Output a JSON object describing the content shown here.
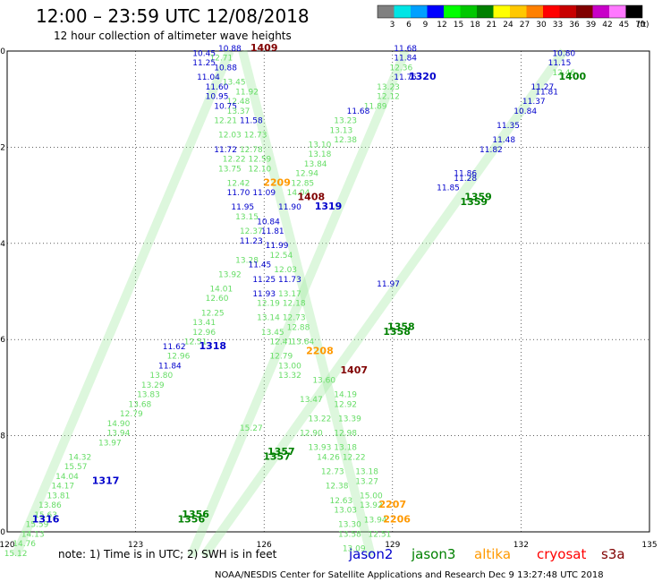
{
  "title": "12:00 – 23:59 UTC 12/08/2018",
  "subtitle": "12 hour collection of altimeter wave heights",
  "color_scale": {
    "unit": "(ft)",
    "labels": [
      "3",
      "6",
      "9",
      "12",
      "15",
      "18",
      "21",
      "24",
      "27",
      "30",
      "33",
      "36",
      "39",
      "42",
      "45",
      "70"
    ],
    "colors": [
      "#808080",
      "#00e5e5",
      "#00a0ff",
      "#0000ff",
      "#00ff00",
      "#00c800",
      "#008000",
      "#ffff00",
      "#ffc800",
      "#ff8000",
      "#ff0000",
      "#c80000",
      "#800000",
      "#c800c8",
      "#ff78ff",
      "#000000"
    ]
  },
  "note": "note: 1) Time is in UTC; 2) SWH is in feet",
  "credit": "NOAA/NESDIS Center for Satellite Applications and Research   Dec  9 13:27:48 UTC 2018",
  "satellites": [
    {
      "name": "jason2",
      "color": "#0000cc"
    },
    {
      "name": "jason3",
      "color": "#008000"
    },
    {
      "name": "altika",
      "color": "#ff9900"
    },
    {
      "name": "cryosat",
      "color": "#ff0000"
    },
    {
      "name": "s3a",
      "color": "#800000"
    }
  ],
  "chart_data": {
    "type": "scatter",
    "x_axis": {
      "min": 120,
      "max": 135,
      "ticks": [
        "120",
        "123",
        "126",
        "129",
        "132",
        "135"
      ]
    },
    "y_axis": {
      "min": -50,
      "max": -40,
      "ticks": [
        "-40",
        "-42",
        "-44",
        "-46",
        "-48",
        "-50"
      ]
    },
    "grid": true,
    "time_labels": [
      {
        "text": "1409",
        "lon": 126.0,
        "lat": -40.0,
        "sat": "s3a"
      },
      {
        "text": "1320",
        "lon": 129.7,
        "lat": -40.6,
        "sat": "jason2"
      },
      {
        "text": "1400",
        "lon": 133.2,
        "lat": -40.6,
        "sat": "jason3"
      },
      {
        "text": "2209",
        "lon": 126.3,
        "lat": -42.8,
        "sat": "altika"
      },
      {
        "text": "1408",
        "lon": 127.1,
        "lat": -43.1,
        "sat": "s3a"
      },
      {
        "text": "1319",
        "lon": 127.5,
        "lat": -43.3,
        "sat": "jason2"
      },
      {
        "text": "1359",
        "lon": 131.0,
        "lat": -43.1,
        "sat": "jason3"
      },
      {
        "text": "1359",
        "lon": 130.9,
        "lat": -43.2,
        "sat": "jason3"
      },
      {
        "text": "1358",
        "lon": 129.2,
        "lat": -45.8,
        "sat": "jason3"
      },
      {
        "text": "1358",
        "lon": 129.1,
        "lat": -45.9,
        "sat": "jason3"
      },
      {
        "text": "1318",
        "lon": 124.8,
        "lat": -46.2,
        "sat": "jason2"
      },
      {
        "text": "2208",
        "lon": 127.3,
        "lat": -46.3,
        "sat": "altika"
      },
      {
        "text": "1407",
        "lon": 128.1,
        "lat": -46.7,
        "sat": "s3a"
      },
      {
        "text": "1357",
        "lon": 126.4,
        "lat": -48.4,
        "sat": "jason3"
      },
      {
        "text": "1357",
        "lon": 126.3,
        "lat": -48.5,
        "sat": "jason3"
      },
      {
        "text": "1317",
        "lon": 122.3,
        "lat": -49.0,
        "sat": "jason2"
      },
      {
        "text": "2207",
        "lon": 129.0,
        "lat": -49.5,
        "sat": "altika"
      },
      {
        "text": "2206",
        "lon": 129.1,
        "lat": -49.8,
        "sat": "altika"
      },
      {
        "text": "1316",
        "lon": 120.9,
        "lat": -49.8,
        "sat": "jason2"
      },
      {
        "text": "1356",
        "lon": 124.4,
        "lat": -49.7,
        "sat": "jason3"
      },
      {
        "text": "1356",
        "lon": 124.3,
        "lat": -49.8,
        "sat": "jason3"
      }
    ],
    "swh_labels": [
      {
        "v": "10.88",
        "lon": 125.2,
        "lat": -40.0,
        "c": "#0000cc"
      },
      {
        "v": "10.45",
        "lon": 124.6,
        "lat": -40.1,
        "c": "#0000cc"
      },
      {
        "v": "12.71",
        "lon": 125.0,
        "lat": -40.2,
        "c": "#66dd66"
      },
      {
        "v": "10.88",
        "lon": 125.1,
        "lat": -40.4,
        "c": "#0000cc"
      },
      {
        "v": "11.25",
        "lon": 124.6,
        "lat": -40.3,
        "c": "#0000cc"
      },
      {
        "v": "11.04",
        "lon": 124.7,
        "lat": -40.6,
        "c": "#0000cc"
      },
      {
        "v": "13.45",
        "lon": 125.3,
        "lat": -40.7,
        "c": "#66dd66"
      },
      {
        "v": "11.60",
        "lon": 124.9,
        "lat": -40.8,
        "c": "#0000cc"
      },
      {
        "v": "11.92",
        "lon": 125.6,
        "lat": -40.9,
        "c": "#66dd66"
      },
      {
        "v": "10.95",
        "lon": 124.9,
        "lat": -41.0,
        "c": "#0000cc"
      },
      {
        "v": "12.48",
        "lon": 125.4,
        "lat": -41.1,
        "c": "#66dd66"
      },
      {
        "v": "10.75",
        "lon": 125.1,
        "lat": -41.2,
        "c": "#0000cc"
      },
      {
        "v": "13.37",
        "lon": 125.4,
        "lat": -41.3,
        "c": "#66dd66"
      },
      {
        "v": "12.21",
        "lon": 125.1,
        "lat": -41.5,
        "c": "#66dd66"
      },
      {
        "v": "11.58",
        "lon": 125.7,
        "lat": -41.5,
        "c": "#0000cc"
      },
      {
        "v": "12.03",
        "lon": 125.2,
        "lat": -41.8,
        "c": "#66dd66"
      },
      {
        "v": "12.73",
        "lon": 125.8,
        "lat": -41.8,
        "c": "#66dd66"
      },
      {
        "v": "11.72",
        "lon": 125.1,
        "lat": -42.1,
        "c": "#0000cc"
      },
      {
        "v": "12.78",
        "lon": 125.7,
        "lat": -42.1,
        "c": "#66dd66"
      },
      {
        "v": "12.22",
        "lon": 125.3,
        "lat": -42.3,
        "c": "#66dd66"
      },
      {
        "v": "12.59",
        "lon": 125.9,
        "lat": -42.3,
        "c": "#66dd66"
      },
      {
        "v": "13.75",
        "lon": 125.2,
        "lat": -42.5,
        "c": "#66dd66"
      },
      {
        "v": "12.10",
        "lon": 125.9,
        "lat": -42.5,
        "c": "#66dd66"
      },
      {
        "v": "12.42",
        "lon": 125.4,
        "lat": -42.8,
        "c": "#66dd66"
      },
      {
        "v": "11.70",
        "lon": 125.4,
        "lat": -43.0,
        "c": "#0000cc"
      },
      {
        "v": "11.09",
        "lon": 126.0,
        "lat": -43.0,
        "c": "#0000cc"
      },
      {
        "v": "11.95",
        "lon": 125.5,
        "lat": -43.3,
        "c": "#0000cc"
      },
      {
        "v": "11.90",
        "lon": 126.6,
        "lat": -43.3,
        "c": "#0000cc"
      },
      {
        "v": "13.15",
        "lon": 125.6,
        "lat": -43.5,
        "c": "#66dd66"
      },
      {
        "v": "10.84",
        "lon": 126.1,
        "lat": -43.6,
        "c": "#0000cc"
      },
      {
        "v": "12.37",
        "lon": 125.7,
        "lat": -43.8,
        "c": "#66dd66"
      },
      {
        "v": "11.81",
        "lon": 126.2,
        "lat": -43.8,
        "c": "#0000cc"
      },
      {
        "v": "11.23",
        "lon": 125.7,
        "lat": -44.0,
        "c": "#0000cc"
      },
      {
        "v": "11.99",
        "lon": 126.3,
        "lat": -44.1,
        "c": "#0000cc"
      },
      {
        "v": "12.54",
        "lon": 126.4,
        "lat": -44.3,
        "c": "#66dd66"
      },
      {
        "v": "13.28",
        "lon": 125.6,
        "lat": -44.4,
        "c": "#66dd66"
      },
      {
        "v": "11.45",
        "lon": 125.9,
        "lat": -44.5,
        "c": "#0000cc"
      },
      {
        "v": "12.03",
        "lon": 126.5,
        "lat": -44.6,
        "c": "#66dd66"
      },
      {
        "v": "13.92",
        "lon": 125.2,
        "lat": -44.7,
        "c": "#66dd66"
      },
      {
        "v": "11.25",
        "lon": 126.0,
        "lat": -44.8,
        "c": "#0000cc"
      },
      {
        "v": "11.73",
        "lon": 126.6,
        "lat": -44.8,
        "c": "#0000cc"
      },
      {
        "v": "14.01",
        "lon": 125.0,
        "lat": -45.0,
        "c": "#66dd66"
      },
      {
        "v": "11.93",
        "lon": 126.0,
        "lat": -45.1,
        "c": "#0000cc"
      },
      {
        "v": "13.17",
        "lon": 126.6,
        "lat": -45.1,
        "c": "#66dd66"
      },
      {
        "v": "12.60",
        "lon": 124.9,
        "lat": -45.2,
        "c": "#66dd66"
      },
      {
        "v": "12.19",
        "lon": 126.1,
        "lat": -45.3,
        "c": "#66dd66"
      },
      {
        "v": "12.18",
        "lon": 126.7,
        "lat": -45.3,
        "c": "#66dd66"
      },
      {
        "v": "12.25",
        "lon": 124.8,
        "lat": -45.5,
        "c": "#66dd66"
      },
      {
        "v": "13.14",
        "lon": 126.1,
        "lat": -45.6,
        "c": "#66dd66"
      },
      {
        "v": "12.73",
        "lon": 126.7,
        "lat": -45.6,
        "c": "#66dd66"
      },
      {
        "v": "13.41",
        "lon": 124.6,
        "lat": -45.7,
        "c": "#66dd66"
      },
      {
        "v": "13.45",
        "lon": 126.2,
        "lat": -45.9,
        "c": "#66dd66"
      },
      {
        "v": "12.88",
        "lon": 126.8,
        "lat": -45.8,
        "c": "#66dd66"
      },
      {
        "v": "12.96",
        "lon": 124.6,
        "lat": -45.9,
        "c": "#66dd66"
      },
      {
        "v": "12.41",
        "lon": 126.4,
        "lat": -46.1,
        "c": "#66dd66"
      },
      {
        "v": "13.64",
        "lon": 126.9,
        "lat": -46.1,
        "c": "#66dd66"
      },
      {
        "v": "12.51",
        "lon": 124.4,
        "lat": -46.1,
        "c": "#66dd66"
      },
      {
        "v": "11.62",
        "lon": 123.9,
        "lat": -46.2,
        "c": "#0000cc"
      },
      {
        "v": "12.79",
        "lon": 126.4,
        "lat": -46.4,
        "c": "#66dd66"
      },
      {
        "v": "12.96",
        "lon": 124.0,
        "lat": -46.4,
        "c": "#66dd66"
      },
      {
        "v": "11.84",
        "lon": 123.8,
        "lat": -46.6,
        "c": "#0000cc"
      },
      {
        "v": "13.00",
        "lon": 126.6,
        "lat": -46.6,
        "c": "#66dd66"
      },
      {
        "v": "13.80",
        "lon": 123.6,
        "lat": -46.8,
        "c": "#66dd66"
      },
      {
        "v": "13.32",
        "lon": 126.6,
        "lat": -46.8,
        "c": "#66dd66"
      },
      {
        "v": "13.60",
        "lon": 127.4,
        "lat": -46.9,
        "c": "#66dd66"
      },
      {
        "v": "13.29",
        "lon": 123.4,
        "lat": -47.0,
        "c": "#66dd66"
      },
      {
        "v": "14.19",
        "lon": 127.9,
        "lat": -47.2,
        "c": "#66dd66"
      },
      {
        "v": "13.83",
        "lon": 123.3,
        "lat": -47.2,
        "c": "#66dd66"
      },
      {
        "v": "13.47",
        "lon": 127.1,
        "lat": -47.3,
        "c": "#66dd66"
      },
      {
        "v": "12.92",
        "lon": 127.9,
        "lat": -47.4,
        "c": "#66dd66"
      },
      {
        "v": "13.68",
        "lon": 123.1,
        "lat": -47.4,
        "c": "#66dd66"
      },
      {
        "v": "12.79",
        "lon": 122.9,
        "lat": -47.6,
        "c": "#66dd66"
      },
      {
        "v": "13.39",
        "lon": 128.0,
        "lat": -47.7,
        "c": "#66dd66"
      },
      {
        "v": "13.22",
        "lon": 127.3,
        "lat": -47.7,
        "c": "#66dd66"
      },
      {
        "v": "14.90",
        "lon": 122.6,
        "lat": -47.8,
        "c": "#66dd66"
      },
      {
        "v": "15.27",
        "lon": 125.7,
        "lat": -47.9,
        "c": "#66dd66"
      },
      {
        "v": "13.94",
        "lon": 122.6,
        "lat": -48.0,
        "c": "#66dd66"
      },
      {
        "v": "12.90",
        "lon": 127.1,
        "lat": -48.0,
        "c": "#66dd66"
      },
      {
        "v": "12.98",
        "lon": 127.9,
        "lat": -48.0,
        "c": "#66dd66"
      },
      {
        "v": "13.97",
        "lon": 122.4,
        "lat": -48.2,
        "c": "#66dd66"
      },
      {
        "v": "13.93",
        "lon": 127.3,
        "lat": -48.3,
        "c": "#66dd66"
      },
      {
        "v": "13.18",
        "lon": 127.9,
        "lat": -48.3,
        "c": "#66dd66"
      },
      {
        "v": "14.26",
        "lon": 127.5,
        "lat": -48.5,
        "c": "#66dd66"
      },
      {
        "v": "12.22",
        "lon": 128.1,
        "lat": -48.5,
        "c": "#66dd66"
      },
      {
        "v": "14.32",
        "lon": 121.7,
        "lat": -48.5,
        "c": "#66dd66"
      },
      {
        "v": "15.57",
        "lon": 121.6,
        "lat": -48.7,
        "c": "#66dd66"
      },
      {
        "v": "12.73",
        "lon": 127.6,
        "lat": -48.8,
        "c": "#66dd66"
      },
      {
        "v": "13.18",
        "lon": 128.4,
        "lat": -48.8,
        "c": "#66dd66"
      },
      {
        "v": "14.04",
        "lon": 121.4,
        "lat": -48.9,
        "c": "#66dd66"
      },
      {
        "v": "13.27",
        "lon": 128.4,
        "lat": -49.0,
        "c": "#66dd66"
      },
      {
        "v": "12.38",
        "lon": 127.7,
        "lat": -49.1,
        "c": "#66dd66"
      },
      {
        "v": "14.17",
        "lon": 121.3,
        "lat": -49.1,
        "c": "#66dd66"
      },
      {
        "v": "13.81",
        "lon": 121.2,
        "lat": -49.3,
        "c": "#66dd66"
      },
      {
        "v": "15.00",
        "lon": 128.5,
        "lat": -49.3,
        "c": "#66dd66"
      },
      {
        "v": "12.63",
        "lon": 127.8,
        "lat": -49.4,
        "c": "#66dd66"
      },
      {
        "v": "13.86",
        "lon": 121.0,
        "lat": -49.5,
        "c": "#66dd66"
      },
      {
        "v": "13.92",
        "lon": 128.5,
        "lat": -49.5,
        "c": "#66dd66"
      },
      {
        "v": "13.03",
        "lon": 127.9,
        "lat": -49.6,
        "c": "#66dd66"
      },
      {
        "v": "15.63",
        "lon": 120.9,
        "lat": -49.7,
        "c": "#66dd66"
      },
      {
        "v": "13.94",
        "lon": 128.6,
        "lat": -49.8,
        "c": "#66dd66"
      },
      {
        "v": "15.59",
        "lon": 120.7,
        "lat": -49.9,
        "c": "#66dd66"
      },
      {
        "v": "13.30",
        "lon": 128.0,
        "lat": -49.9,
        "c": "#66dd66"
      },
      {
        "v": "12.51",
        "lon": 128.7,
        "lat": -50.1,
        "c": "#66dd66"
      },
      {
        "v": "14.13",
        "lon": 120.6,
        "lat": -50.1,
        "c": "#66dd66"
      },
      {
        "v": "13.58",
        "lon": 128.0,
        "lat": -50.1,
        "c": "#66dd66"
      },
      {
        "v": "14.76",
        "lon": 120.4,
        "lat": -50.3,
        "c": "#66dd66"
      },
      {
        "v": "13.09",
        "lon": 128.1,
        "lat": -50.4,
        "c": "#66dd66"
      },
      {
        "v": "15.12",
        "lon": 120.2,
        "lat": -50.5,
        "c": "#66dd66"
      },
      {
        "v": "11.68",
        "lon": 129.3,
        "lat": -40.0,
        "c": "#0000cc"
      },
      {
        "v": "11.84",
        "lon": 129.3,
        "lat": -40.2,
        "c": "#0000cc"
      },
      {
        "v": "12.36",
        "lon": 129.2,
        "lat": -40.4,
        "c": "#66dd66"
      },
      {
        "v": "11.75",
        "lon": 129.3,
        "lat": -40.6,
        "c": "#0000cc"
      },
      {
        "v": "13.23",
        "lon": 128.9,
        "lat": -40.8,
        "c": "#66dd66"
      },
      {
        "v": "12.12",
        "lon": 128.9,
        "lat": -41.0,
        "c": "#66dd66"
      },
      {
        "v": "11.89",
        "lon": 128.6,
        "lat": -41.2,
        "c": "#66dd66"
      },
      {
        "v": "11.68",
        "lon": 128.2,
        "lat": -41.3,
        "c": "#0000cc"
      },
      {
        "v": "13.23",
        "lon": 127.9,
        "lat": -41.5,
        "c": "#66dd66"
      },
      {
        "v": "13.13",
        "lon": 127.8,
        "lat": -41.7,
        "c": "#66dd66"
      },
      {
        "v": "12.38",
        "lon": 127.9,
        "lat": -41.9,
        "c": "#66dd66"
      },
      {
        "v": "13.10",
        "lon": 127.3,
        "lat": -42.0,
        "c": "#66dd66"
      },
      {
        "v": "13.18",
        "lon": 127.3,
        "lat": -42.2,
        "c": "#66dd66"
      },
      {
        "v": "13.84",
        "lon": 127.2,
        "lat": -42.4,
        "c": "#66dd66"
      },
      {
        "v": "12.94",
        "lon": 127.0,
        "lat": -42.6,
        "c": "#66dd66"
      },
      {
        "v": "12.85",
        "lon": 126.9,
        "lat": -42.8,
        "c": "#66dd66"
      },
      {
        "v": "14.04",
        "lon": 126.8,
        "lat": -43.0,
        "c": "#66dd66"
      },
      {
        "v": "11.97",
        "lon": 128.9,
        "lat": -44.9,
        "c": "#0000cc"
      },
      {
        "v": "10.80",
        "lon": 133.0,
        "lat": -40.1,
        "c": "#0000cc"
      },
      {
        "v": "11.15",
        "lon": 132.9,
        "lat": -40.3,
        "c": "#0000cc"
      },
      {
        "v": "12.46",
        "lon": 133.0,
        "lat": -40.5,
        "c": "#66dd66"
      },
      {
        "v": "11.27",
        "lon": 132.5,
        "lat": -40.8,
        "c": "#0000cc"
      },
      {
        "v": "11.81",
        "lon": 132.6,
        "lat": -40.9,
        "c": "#0000cc"
      },
      {
        "v": "11.37",
        "lon": 132.3,
        "lat": -41.1,
        "c": "#0000cc"
      },
      {
        "v": "10.84",
        "lon": 132.1,
        "lat": -41.3,
        "c": "#0000cc"
      },
      {
        "v": "11.35",
        "lon": 131.7,
        "lat": -41.6,
        "c": "#0000cc"
      },
      {
        "v": "11.48",
        "lon": 131.6,
        "lat": -41.9,
        "c": "#0000cc"
      },
      {
        "v": "11.82",
        "lon": 131.3,
        "lat": -42.1,
        "c": "#0000cc"
      },
      {
        "v": "11.86",
        "lon": 130.7,
        "lat": -42.6,
        "c": "#0000cc"
      },
      {
        "v": "11.28",
        "lon": 130.7,
        "lat": -42.7,
        "c": "#0000cc"
      },
      {
        "v": "11.85",
        "lon": 130.3,
        "lat": -42.9,
        "c": "#0000cc"
      }
    ]
  }
}
